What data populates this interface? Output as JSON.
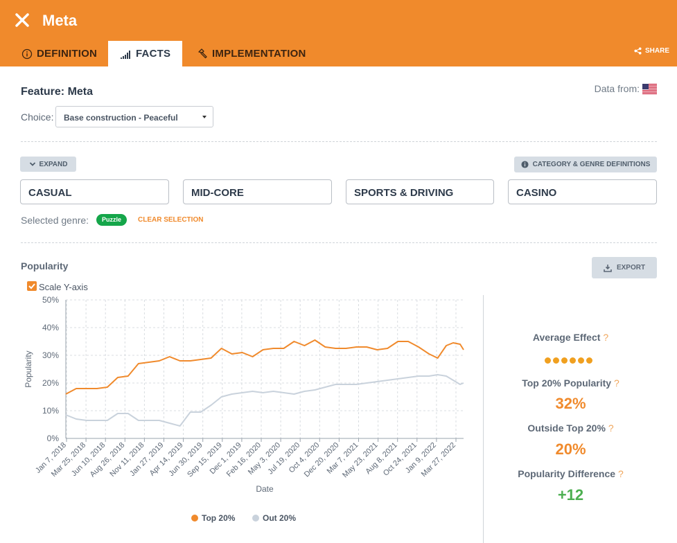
{
  "header": {
    "title": "Meta",
    "tabs": [
      {
        "label": "DEFINITION",
        "icon": "info-icon"
      },
      {
        "label": "FACTS",
        "icon": "bar-chart-icon"
      },
      {
        "label": "IMPLEMENTATION",
        "icon": "hammer-icon"
      }
    ],
    "active_tab": "FACTS",
    "share_label": "SHARE",
    "accent_color": "#f08a2c"
  },
  "feature": {
    "title": "Feature: Meta",
    "data_from_label": "Data from:",
    "flag": "us-flag-icon",
    "choice_label": "Choice:",
    "choice_value": "Base construction - Peaceful"
  },
  "categories": {
    "expand_label": "EXPAND",
    "definitions_label": "CATEGORY & GENRE DEFINITIONS",
    "items": [
      "CASUAL",
      "MID-CORE",
      "SPORTS & DRIVING",
      "CASINO"
    ],
    "selected_genre_label": "Selected genre:",
    "selected_genre": "Puzzle",
    "clear_label": "CLEAR SELECTION"
  },
  "popularity": {
    "title": "Popularity",
    "export_label": "EXPORT",
    "scale_label": "Scale Y-axis",
    "scale_checked": true
  },
  "stats": {
    "average_effect_label": "Average Effect",
    "average_effect_dots": 6,
    "top_label": "Top 20% Popularity",
    "top_value": "32%",
    "outside_label": "Outside Top 20%",
    "outside_value": "20%",
    "diff_label": "Popularity Difference",
    "diff_value": "+12",
    "question_mark": "?",
    "top_color": "#f08a2c",
    "diff_color": "#4caf50"
  },
  "chart_data": {
    "type": "line",
    "xlabel": "Date",
    "ylabel": "Popularity",
    "ylim": [
      0,
      50
    ],
    "y_ticks": [
      "0%",
      "10%",
      "20%",
      "30%",
      "40%",
      "50%"
    ],
    "x_tick_labels": [
      "Jan 7, 2018",
      "Mar 25, 2018",
      "Jun 10, 2018",
      "Aug 26, 2018",
      "Nov 11, 2018",
      "Jan 27, 2019",
      "Apr 14, 2019",
      "Jun 30, 2019",
      "Sep 15, 2019",
      "Dec 1, 2019",
      "Feb 16, 2020",
      "May 3, 2020",
      "Jul 19, 2020",
      "Oct 4, 2020",
      "Dec 20, 2020",
      "Mar 7, 2021",
      "May 23, 2021",
      "Aug 8, 2021",
      "Oct 24, 2021",
      "Jan 9, 2022",
      "Mar 27, 2022"
    ],
    "x_range": [
      "2018-01-07",
      "2022-06-05"
    ],
    "grid": true,
    "legend_position": "bottom",
    "series": [
      {
        "name": "Top 20%",
        "color": "#f08a2c",
        "points": [
          [
            "2018-01-07",
            16
          ],
          [
            "2018-02-18",
            18
          ],
          [
            "2018-04-01",
            18
          ],
          [
            "2018-05-13",
            18
          ],
          [
            "2018-06-24",
            18.5
          ],
          [
            "2018-08-05",
            22
          ],
          [
            "2018-09-16",
            22.5
          ],
          [
            "2018-10-28",
            27
          ],
          [
            "2018-12-09",
            27.5
          ],
          [
            "2019-01-20",
            28
          ],
          [
            "2019-03-03",
            29.5
          ],
          [
            "2019-04-14",
            28
          ],
          [
            "2019-05-26",
            28
          ],
          [
            "2019-07-07",
            28.5
          ],
          [
            "2019-08-18",
            29
          ],
          [
            "2019-09-29",
            32.5
          ],
          [
            "2019-11-10",
            30.5
          ],
          [
            "2019-12-22",
            31
          ],
          [
            "2020-02-02",
            29.5
          ],
          [
            "2020-03-15",
            32
          ],
          [
            "2020-04-26",
            32.5
          ],
          [
            "2020-06-07",
            32.5
          ],
          [
            "2020-07-19",
            35
          ],
          [
            "2020-08-30",
            33.5
          ],
          [
            "2020-10-11",
            35.5
          ],
          [
            "2020-11-22",
            33
          ],
          [
            "2021-01-03",
            32.5
          ],
          [
            "2021-02-14",
            32.5
          ],
          [
            "2021-03-28",
            33
          ],
          [
            "2021-05-09",
            33
          ],
          [
            "2021-06-20",
            32
          ],
          [
            "2021-08-01",
            32.5
          ],
          [
            "2021-09-12",
            35
          ],
          [
            "2021-10-24",
            35
          ],
          [
            "2021-12-05",
            33
          ],
          [
            "2022-01-16",
            30.5
          ],
          [
            "2022-02-20",
            29
          ],
          [
            "2022-03-27",
            33.5
          ],
          [
            "2022-04-24",
            34.5
          ],
          [
            "2022-05-22",
            34
          ],
          [
            "2022-06-05",
            32
          ]
        ]
      },
      {
        "name": "Out 20%",
        "color": "#c9d2dc",
        "points": [
          [
            "2018-01-07",
            8.5
          ],
          [
            "2018-02-18",
            7
          ],
          [
            "2018-04-01",
            6.5
          ],
          [
            "2018-05-13",
            6.5
          ],
          [
            "2018-06-24",
            6.5
          ],
          [
            "2018-08-05",
            9
          ],
          [
            "2018-09-16",
            9
          ],
          [
            "2018-10-28",
            6.5
          ],
          [
            "2018-12-09",
            6.5
          ],
          [
            "2019-01-20",
            6.5
          ],
          [
            "2019-03-03",
            5.5
          ],
          [
            "2019-04-14",
            4.5
          ],
          [
            "2019-05-26",
            9.5
          ],
          [
            "2019-07-07",
            9.5
          ],
          [
            "2019-08-18",
            12
          ],
          [
            "2019-09-29",
            15
          ],
          [
            "2019-11-10",
            16
          ],
          [
            "2019-12-22",
            16.5
          ],
          [
            "2020-02-02",
            17
          ],
          [
            "2020-03-15",
            16.5
          ],
          [
            "2020-04-26",
            17
          ],
          [
            "2020-06-07",
            16.5
          ],
          [
            "2020-07-19",
            16
          ],
          [
            "2020-08-30",
            17
          ],
          [
            "2020-10-11",
            17.5
          ],
          [
            "2020-11-22",
            18.5
          ],
          [
            "2021-01-03",
            19.5
          ],
          [
            "2021-02-14",
            19.5
          ],
          [
            "2021-03-28",
            19.5
          ],
          [
            "2021-05-09",
            20
          ],
          [
            "2021-06-20",
            20.5
          ],
          [
            "2021-08-01",
            21
          ],
          [
            "2021-09-12",
            21.5
          ],
          [
            "2021-10-24",
            22
          ],
          [
            "2021-12-05",
            22.5
          ],
          [
            "2022-01-16",
            22.5
          ],
          [
            "2022-02-20",
            23
          ],
          [
            "2022-03-27",
            22.5
          ],
          [
            "2022-04-24",
            21
          ],
          [
            "2022-05-22",
            19.5
          ],
          [
            "2022-06-05",
            20
          ]
        ]
      }
    ]
  }
}
